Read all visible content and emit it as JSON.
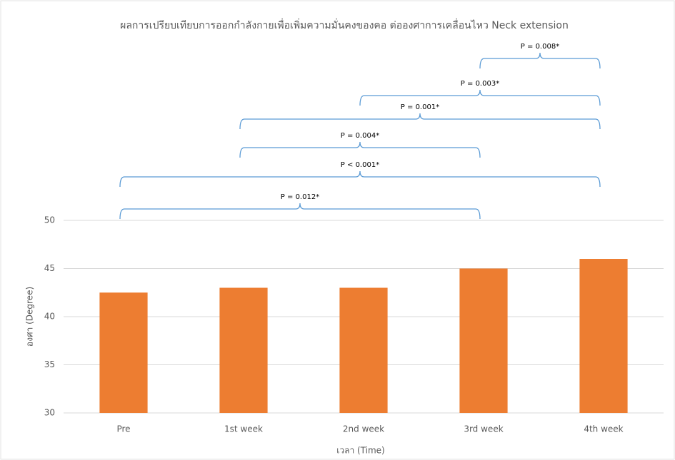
{
  "chart_data": {
    "type": "bar",
    "title": "ผลการเปรียบเทียบการออกกำลังกายเพื่อเพิ่มความมั่นคงของคอ ต่อองศาการเคลื่อนไหว Neck extension",
    "x_label": "เวลา (Time)",
    "y_label": "องศา (Degree)",
    "categories": [
      "Pre",
      "1st week",
      "2nd week",
      "3rd week",
      "4th week"
    ],
    "values": [
      42.5,
      43,
      43,
      45,
      46
    ],
    "color": "#ed7d31",
    "ylim": [
      30,
      50
    ],
    "yticks": [
      30,
      35,
      40,
      45,
      50
    ],
    "grid": true,
    "annotations": [
      {
        "text": "P = 0.012*",
        "from": 0,
        "to": 3
      },
      {
        "text": "P < 0.001*",
        "from": 0,
        "to": 4
      },
      {
        "text": "P = 0.004*",
        "from": 1,
        "to": 3
      },
      {
        "text": "P = 0.001*",
        "from": 1,
        "to": 4
      },
      {
        "text": "P = 0.003*",
        "from": 2,
        "to": 4
      },
      {
        "text": "P = 0.008*",
        "from": 3,
        "to": 4
      }
    ]
  }
}
